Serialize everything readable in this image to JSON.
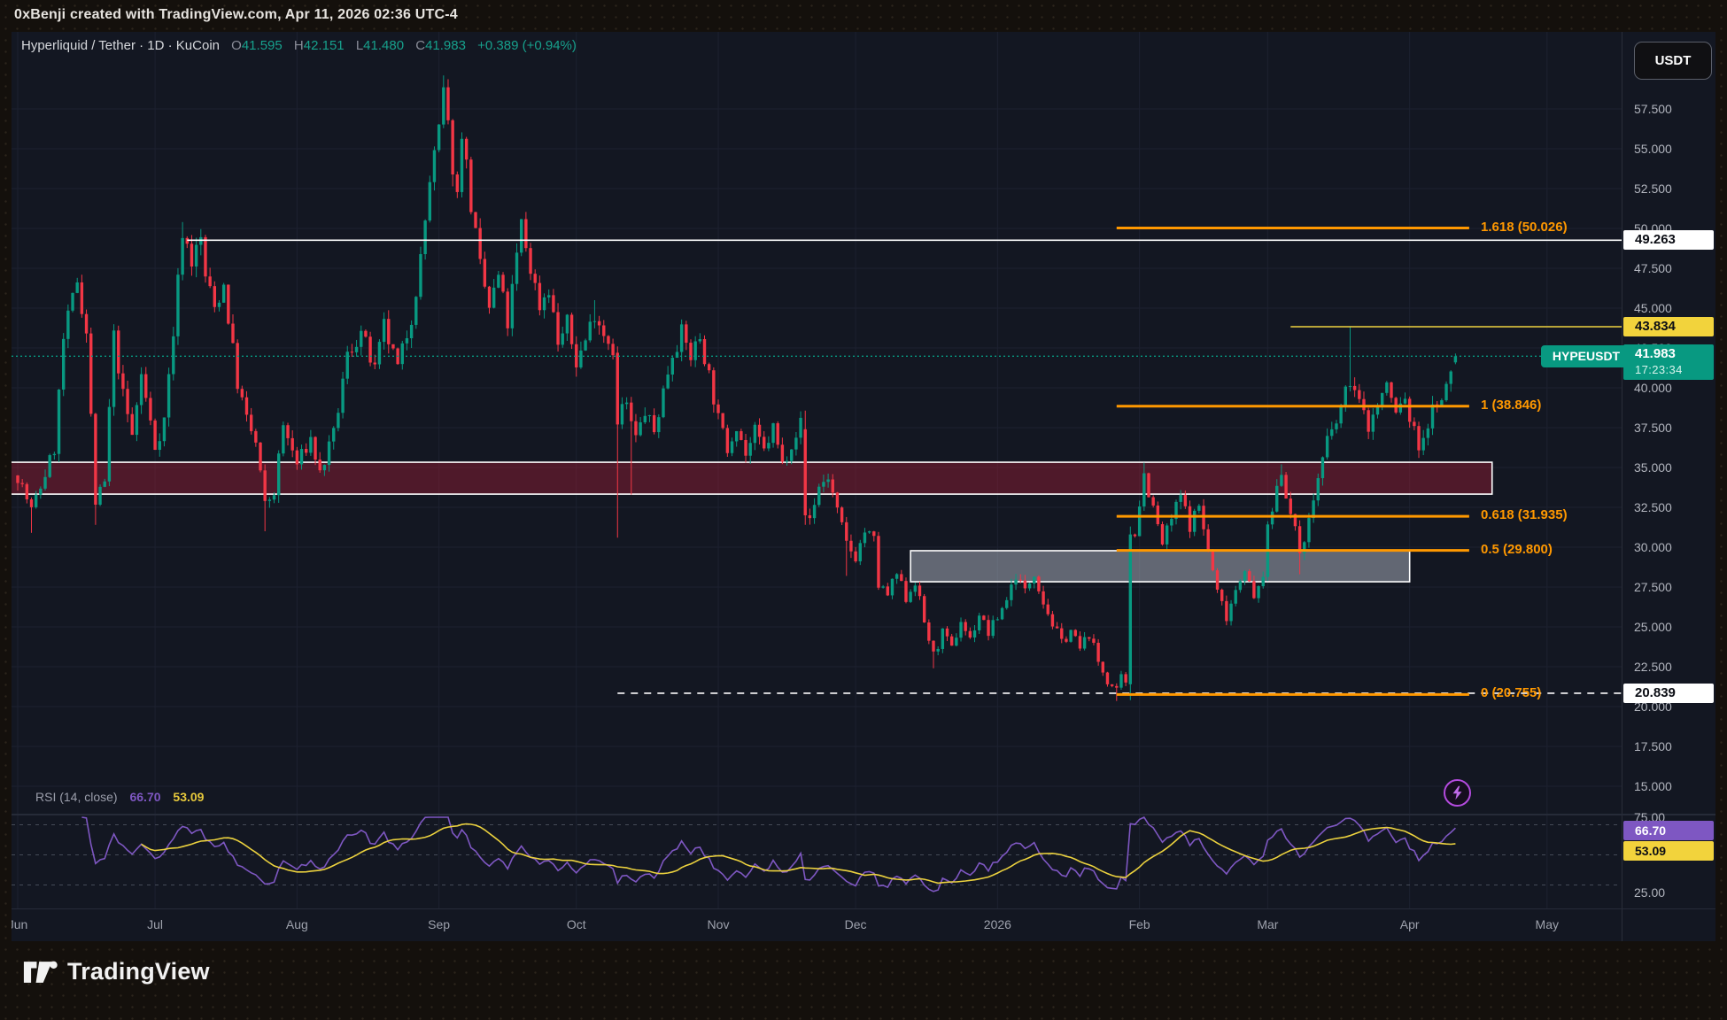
{
  "frame": {
    "attribution": "0xBenji created with TradingView.com, Apr 11, 2026 02:36 UTC-4",
    "logo_text": "TradingView"
  },
  "header": {
    "series_title": "Hyperliquid / Tether · 1D · KuCoin",
    "o_label": "O",
    "o_value": "41.595",
    "h_label": "H",
    "h_value": "42.151",
    "l_label": "L",
    "l_value": "41.480",
    "c_label": "C",
    "c_value": "41.983",
    "change": "+0.389 (+0.94%)",
    "currency_button": "USDT"
  },
  "price_line": {
    "badge": "HYPEUSDT",
    "price_label": "41.983",
    "countdown": "17:23:34",
    "price": 41.983
  },
  "levels": {
    "white_line": {
      "price": 49.263,
      "label": "49.263",
      "start_day": 37
    },
    "yellow_line": {
      "price": 43.834,
      "label": "43.834",
      "start_day": 278
    },
    "dashed_line": {
      "price": 20.839,
      "label": "20.839",
      "start_day": 131
    }
  },
  "rsi": {
    "title": "RSI (14, close)",
    "value": "66.70",
    "ma": "53.09",
    "value_num": 66.7,
    "ma_num": 53.09,
    "upper_tick": "75.00",
    "lower_tick": "25.00",
    "bands": [
      70,
      50,
      30
    ]
  },
  "colors": {
    "up": "#089981",
    "down": "#f23645",
    "orange": "#ff9800",
    "yellow": "#f0d33f",
    "white": "#ffffff",
    "teal": "#089981",
    "rsi": "#7e57c2",
    "rsi_ma": "#ecd23e",
    "grid": "#1d2130",
    "axis_text": "#b2b5be"
  },
  "chart_data": {
    "type": "candlestick",
    "symbol": "HYPEUSDT",
    "exchange": "KuCoin",
    "interval": "1D",
    "title": "Hyperliquid / Tether · 1D · KuCoin",
    "last_candle": {
      "open": 41.595,
      "high": 42.151,
      "low": 41.48,
      "close": 41.983,
      "change": 0.389,
      "change_pct": 0.94
    },
    "ylim": [
      13.5,
      60.5
    ],
    "y_ticks": [
      [
        "57.500",
        57.5
      ],
      [
        "55.000",
        55
      ],
      [
        "52.500",
        52.5
      ],
      [
        "50.000",
        50
      ],
      [
        "47.500",
        47.5
      ],
      [
        "45.000",
        45
      ],
      [
        "42.500",
        42.5
      ],
      [
        "40.000",
        40
      ],
      [
        "37.500",
        37.5
      ],
      [
        "35.000",
        35
      ],
      [
        "32.500",
        32.5
      ],
      [
        "30.000",
        30
      ],
      [
        "27.500",
        27.5
      ],
      [
        "25.000",
        25
      ],
      [
        "22.500",
        22.5
      ],
      [
        "20.000",
        20
      ],
      [
        "17.500",
        17.5
      ],
      [
        "15.000",
        15
      ]
    ],
    "x_labels": [
      [
        "Jun",
        0
      ],
      [
        "Jul",
        30
      ],
      [
        "Aug",
        61
      ],
      [
        "Sep",
        92
      ],
      [
        "Oct",
        122
      ],
      [
        "Nov",
        153
      ],
      [
        "Dec",
        183
      ],
      [
        "2026",
        214
      ],
      [
        "Feb",
        245
      ],
      [
        "Mar",
        273
      ],
      [
        "Apr",
        304
      ],
      [
        "May",
        334
      ]
    ],
    "days": 314,
    "seed": 7,
    "fib": {
      "start_day": 240,
      "end_day": 317,
      "levels": [
        {
          "label": "1.618 (50.026)",
          "price": 50.026
        },
        {
          "label": "1 (38.846)",
          "price": 38.846
        },
        {
          "label": "0.618 (31.935)",
          "price": 31.935
        },
        {
          "label": "0.5 (29.800)",
          "price": 29.8
        },
        {
          "label": "0 (20.755)",
          "price": 20.755
        }
      ]
    },
    "zones": [
      {
        "name": "supply-zone",
        "top": 35.33,
        "bottom": 33.33,
        "start_day": -3,
        "end_day": 322,
        "fill": "rgba(170,30,55,0.40)"
      },
      {
        "name": "demand-zone",
        "top": 29.78,
        "bottom": 27.83,
        "start_day": 195,
        "end_day": 304,
        "fill": "rgba(178,184,196,0.50)"
      }
    ],
    "anchors": [
      [
        0,
        34.5
      ],
      [
        3,
        32.3
      ],
      [
        5,
        33.8
      ],
      [
        8,
        36.2
      ],
      [
        10,
        43
      ],
      [
        13,
        46.8
      ],
      [
        15,
        43.5
      ],
      [
        17,
        32.8
      ],
      [
        19,
        34
      ],
      [
        21,
        43.2
      ],
      [
        23,
        39.5
      ],
      [
        25,
        37
      ],
      [
        27,
        40.8
      ],
      [
        30,
        36.3
      ],
      [
        32,
        38
      ],
      [
        34,
        43.5
      ],
      [
        36,
        49.9
      ],
      [
        38,
        48
      ],
      [
        40,
        49.3
      ],
      [
        41,
        47
      ],
      [
        43,
        45
      ],
      [
        45,
        46.5
      ],
      [
        48,
        40.3
      ],
      [
        50,
        38
      ],
      [
        52,
        36.5
      ],
      [
        54,
        32.6
      ],
      [
        56,
        33.5
      ],
      [
        58,
        37.6
      ],
      [
        61,
        35.2
      ],
      [
        64,
        36.8
      ],
      [
        66,
        34.6
      ],
      [
        69,
        37
      ],
      [
        72,
        42
      ],
      [
        75,
        43.5
      ],
      [
        78,
        41
      ],
      [
        80,
        43.8
      ],
      [
        83,
        41.2
      ],
      [
        86,
        44.5
      ],
      [
        88,
        48
      ],
      [
        90,
        53
      ],
      [
        92,
        56
      ],
      [
        93,
        58.5
      ],
      [
        95,
        54
      ],
      [
        96,
        52
      ],
      [
        97,
        56.3
      ],
      [
        99,
        51.5
      ],
      [
        101,
        47.5
      ],
      [
        103,
        45
      ],
      [
        105,
        47
      ],
      [
        107,
        44
      ],
      [
        109,
        48.2
      ],
      [
        110,
        50.3
      ],
      [
        112,
        47.5
      ],
      [
        114,
        45.2
      ],
      [
        116,
        46.3
      ],
      [
        118,
        42.8
      ],
      [
        120,
        44
      ],
      [
        122,
        41.6
      ],
      [
        124,
        43
      ],
      [
        126,
        44.8
      ],
      [
        128,
        43.5
      ],
      [
        130,
        42.5
      ],
      [
        131,
        39
      ],
      [
        133,
        38.8
      ],
      [
        135,
        36.8
      ],
      [
        137,
        38.5
      ],
      [
        139,
        37.2
      ],
      [
        141,
        39.8
      ],
      [
        143,
        42.3
      ],
      [
        145,
        43.4
      ],
      [
        147,
        42
      ],
      [
        149,
        43.2
      ],
      [
        151,
        40.8
      ],
      [
        153,
        38
      ],
      [
        155,
        36.2
      ],
      [
        157,
        37.8
      ],
      [
        159,
        35.8
      ],
      [
        161,
        37.2
      ],
      [
        163,
        36
      ],
      [
        165,
        37.5
      ],
      [
        167,
        35.2
      ],
      [
        169,
        36.6
      ],
      [
        171,
        37.8
      ],
      [
        173,
        31.8
      ],
      [
        175,
        33.8
      ],
      [
        177,
        34.4
      ],
      [
        179,
        32.2
      ],
      [
        181,
        30.2
      ],
      [
        183,
        29.4
      ],
      [
        185,
        31
      ],
      [
        187,
        30.4
      ],
      [
        188,
        27.6
      ],
      [
        190,
        27
      ],
      [
        192,
        28.3
      ],
      [
        194,
        26.8
      ],
      [
        196,
        27.9
      ],
      [
        198,
        25.3
      ],
      [
        200,
        23.2
      ],
      [
        202,
        24.6
      ],
      [
        204,
        23.6
      ],
      [
        206,
        25.4
      ],
      [
        208,
        24.2
      ],
      [
        210,
        25.8
      ],
      [
        212,
        24.6
      ],
      [
        214,
        25.6
      ],
      [
        216,
        26.8
      ],
      [
        218,
        28.3
      ],
      [
        220,
        27.2
      ],
      [
        222,
        28.5
      ],
      [
        224,
        26.6
      ],
      [
        226,
        25.2
      ],
      [
        228,
        24
      ],
      [
        230,
        24.8
      ],
      [
        232,
        23.6
      ],
      [
        234,
        24.6
      ],
      [
        236,
        22.8
      ],
      [
        238,
        21.6
      ],
      [
        240,
        20.9
      ],
      [
        241,
        21.8
      ],
      [
        242,
        21.3
      ],
      [
        243,
        26
      ],
      [
        244,
        31
      ],
      [
        245,
        32.8
      ],
      [
        246,
        34.6
      ],
      [
        248,
        32.4
      ],
      [
        250,
        30.2
      ],
      [
        252,
        31.8
      ],
      [
        254,
        33.2
      ],
      [
        256,
        31.4
      ],
      [
        258,
        32.6
      ],
      [
        260,
        29.8
      ],
      [
        262,
        27.2
      ],
      [
        264,
        25.7
      ],
      [
        266,
        27.4
      ],
      [
        268,
        28.8
      ],
      [
        270,
        26.6
      ],
      [
        272,
        28.4
      ],
      [
        273,
        31
      ],
      [
        275,
        33.8
      ],
      [
        276,
        34.9
      ],
      [
        278,
        32
      ],
      [
        280,
        29.8
      ],
      [
        282,
        31.6
      ],
      [
        284,
        34.4
      ],
      [
        286,
        36.6
      ],
      [
        288,
        37.8
      ],
      [
        290,
        39.6
      ],
      [
        291,
        40.6
      ],
      [
        293,
        39
      ],
      [
        295,
        37.6
      ],
      [
        297,
        38.9
      ],
      [
        299,
        40.2
      ],
      [
        301,
        38.4
      ],
      [
        303,
        39.4
      ],
      [
        304,
        38
      ],
      [
        306,
        36.4
      ],
      [
        308,
        37.7
      ],
      [
        310,
        39.3
      ],
      [
        311,
        38.9
      ],
      [
        312,
        39.9
      ],
      [
        313,
        41
      ],
      [
        314,
        41.98
      ]
    ],
    "overrides": {
      "3": {
        "l": 30.9
      },
      "13": {
        "h": 46.9
      },
      "17": {
        "l": 31.4
      },
      "36": {
        "h": 50.4
      },
      "54": {
        "l": 31
      },
      "93": {
        "h": 59.6
      },
      "110": {
        "h": 50.6
      },
      "126": {
        "h": 45.5
      },
      "131": {
        "o": 42.2,
        "h": 42.6,
        "l": 30.6,
        "c": 37.7
      },
      "134": {
        "l": 33.3
      },
      "172": {
        "o": 37.4,
        "c": 32,
        "l": 31.4
      },
      "181": {
        "l": 28.2
      },
      "200": {
        "l": 22.4
      },
      "240": {
        "l": 20.35
      },
      "243": {
        "o": 21.4,
        "h": 31.3,
        "l": 20.4,
        "c": 30.8
      },
      "246": {
        "h": 35.3
      },
      "264": {
        "l": 25.1
      },
      "276": {
        "h": 35.2
      },
      "280": {
        "l": 28.3
      },
      "291": {
        "h": 43.84
      },
      "306": {
        "l": 35.6
      },
      "314": {
        "o": 41.595,
        "h": 42.151,
        "l": 41.48,
        "c": 41.983
      }
    },
    "rsi_period": 14,
    "rsi_ma_period": 14
  }
}
